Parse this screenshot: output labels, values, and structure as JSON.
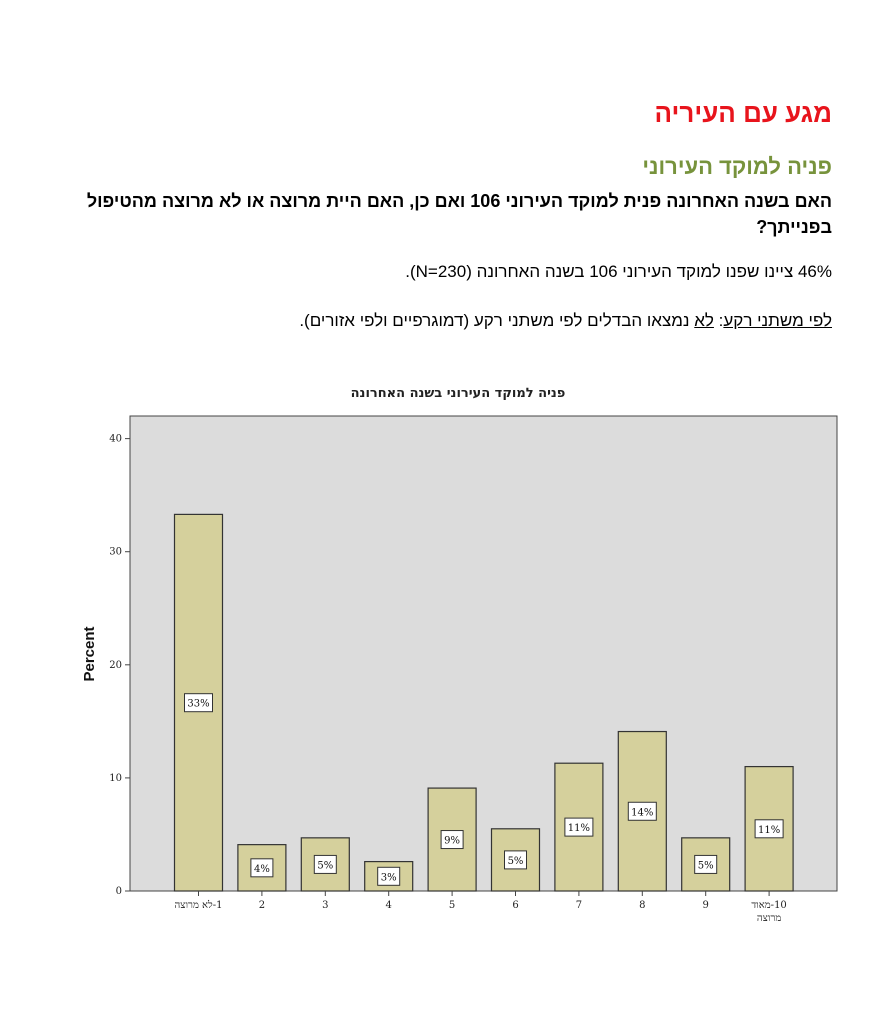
{
  "section_title": "מגע עם העיריה",
  "subsection_title": "פניה למוקד העירוני",
  "question": "האם בשנה האחרונה פנית למוקד העירוני 106 ואם כן, האם היית מרוצה או לא מרוצה מהטיפול בפנייתך?",
  "finding": "46% ציינו שפנו למוקד העירוני 106 בשנה האחרונה (N=230).",
  "subgroups": {
    "label": "לפי משתני רקע",
    "colon": ": ",
    "not_word": "לא",
    "rest": " נמצאו הבדלים לפי משתני רקע (דמוגרפיים ולפי אזורים)."
  },
  "chart_data": {
    "type": "bar",
    "title": "פניה למוקד העירוני בשנה האחרונה",
    "ylabel": "Percent",
    "xlabel": "",
    "ylim": [
      0,
      42
    ],
    "yticks": [
      0,
      10,
      20,
      30,
      40
    ],
    "grid": false,
    "categories": [
      "1-לא מרוצה",
      "2",
      "3",
      "4",
      "5",
      "6",
      "7",
      "8",
      "9",
      "10-מאוד מרוצה"
    ],
    "values": [
      33.3,
      4.1,
      4.7,
      2.6,
      9.1,
      5.5,
      11.3,
      14.1,
      4.7,
      11.0
    ],
    "data_labels": [
      "33%",
      "4%",
      "5%",
      "3%",
      "9%",
      "5%",
      "11%",
      "14%",
      "5%",
      "11%"
    ],
    "bar_color": "#d5d09c",
    "plot_background": "#dcdcdc"
  }
}
